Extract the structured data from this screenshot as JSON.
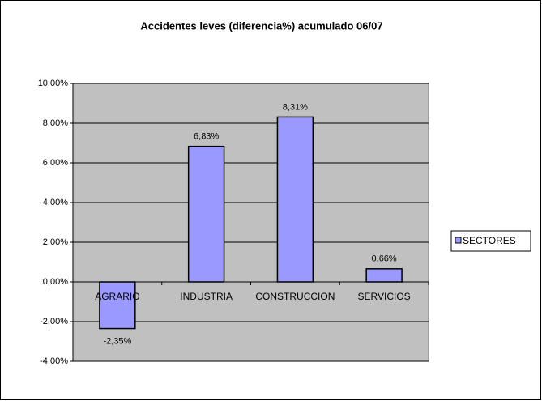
{
  "chart_data": {
    "type": "bar",
    "title": "Accidentes leves (diferencia%) acumulado 06/07",
    "categories": [
      "AGRARIO",
      "INDUSTRIA",
      "CONSTRUCCION",
      "SERVICIOS"
    ],
    "series": [
      {
        "name": "SECTORES",
        "color": "#9999ff",
        "values": [
          -2.35,
          6.83,
          8.31,
          0.66
        ],
        "value_labels": [
          "-2,35%",
          "6,83%",
          "8,31%",
          "0,66%"
        ]
      }
    ],
    "ylim": [
      -4,
      10
    ],
    "yticks": [
      {
        "value": -4,
        "label": "-4,00%"
      },
      {
        "value": -2,
        "label": "-2,00%"
      },
      {
        "value": 0,
        "label": "0,00%"
      },
      {
        "value": 2,
        "label": "2,00%"
      },
      {
        "value": 4,
        "label": "4,00%"
      },
      {
        "value": 6,
        "label": "6,00%"
      },
      {
        "value": 8,
        "label": "8,00%"
      },
      {
        "value": 10,
        "label": "10,00%"
      }
    ],
    "grid": true,
    "legend": "right",
    "plot_background": "#c0c0c0"
  }
}
